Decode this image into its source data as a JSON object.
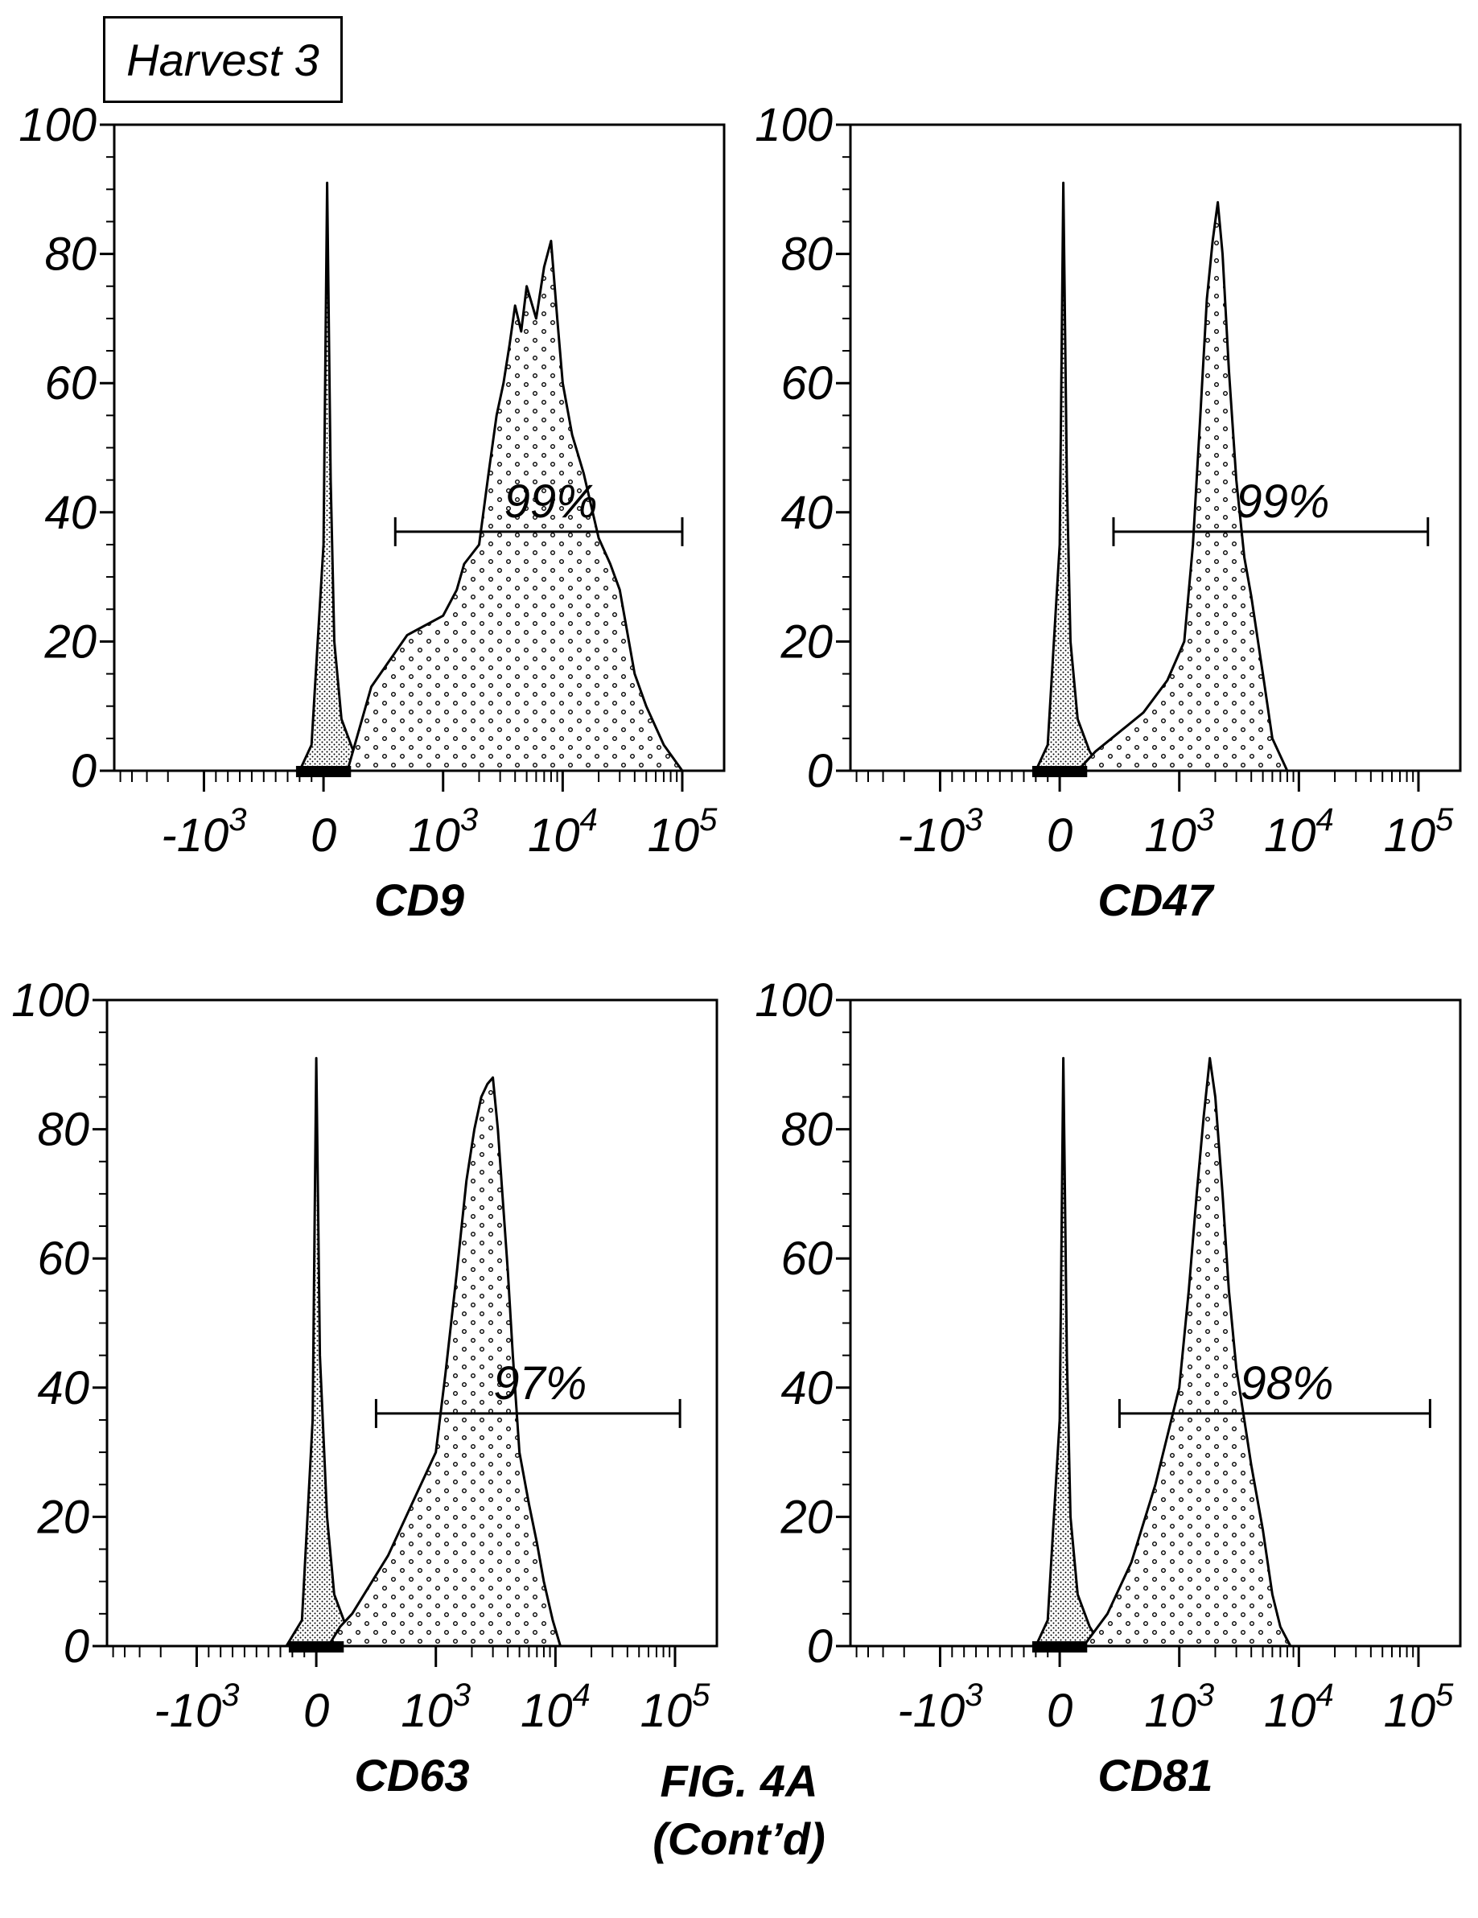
{
  "header": {
    "harvest_label": "Harvest 3"
  },
  "caption": {
    "line1": "FIG. 4A",
    "line2": "(Cont’d)"
  },
  "colors": {
    "ink": "#000000",
    "background": "#ffffff"
  },
  "chart_data": [
    {
      "type": "area",
      "xlabel": "CD9",
      "x_tick_labels": [
        "-10",
        "0",
        "10",
        "10",
        "10"
      ],
      "x_tick_exponents": [
        "3",
        "",
        "3",
        "4",
        "5"
      ],
      "x_tick_values": [
        -1000,
        0,
        1000,
        10000,
        100000
      ],
      "y_ticks": [
        "0",
        "20",
        "40",
        "60",
        "80",
        "100"
      ],
      "ylim": [
        0,
        100
      ],
      "gate_percent": "99%",
      "gate_range": [
        600,
        100000
      ],
      "gate_y": 37,
      "series": [
        {
          "role": "control",
          "x": [
            -200,
            -100,
            0,
            30,
            60,
            90,
            150,
            250,
            350
          ],
          "y": [
            0,
            4,
            35,
            91,
            45,
            20,
            8,
            3,
            0
          ]
        },
        {
          "role": "stained",
          "x": [
            200,
            400,
            700,
            1000,
            1300,
            1500,
            2000,
            2400,
            2800,
            3200,
            3600,
            4000,
            4500,
            5000,
            6000,
            7000,
            8000,
            9000,
            10000,
            12000,
            15000,
            20000,
            25000,
            30000,
            40000,
            50000,
            70000,
            100000
          ],
          "y": [
            0,
            13,
            21,
            24,
            28,
            32,
            35,
            46,
            55,
            60,
            66,
            72,
            68,
            75,
            70,
            78,
            82,
            70,
            60,
            52,
            46,
            36,
            32,
            28,
            15,
            10,
            4,
            0
          ]
        }
      ]
    },
    {
      "type": "area",
      "xlabel": "CD47",
      "x_tick_labels": [
        "-10",
        "0",
        "10",
        "10",
        "10"
      ],
      "x_tick_exponents": [
        "3",
        "",
        "3",
        "4",
        "5"
      ],
      "x_tick_values": [
        -1000,
        0,
        1000,
        10000,
        100000
      ],
      "y_ticks": [
        "0",
        "20",
        "40",
        "60",
        "80",
        "100"
      ],
      "ylim": [
        0,
        100
      ],
      "gate_percent": "99%",
      "gate_range": [
        450,
        120000
      ],
      "gate_y": 37,
      "series": [
        {
          "role": "control",
          "x": [
            -200,
            -100,
            0,
            30,
            60,
            90,
            150,
            250,
            350
          ],
          "y": [
            0,
            4,
            35,
            91,
            45,
            20,
            8,
            3,
            0
          ]
        },
        {
          "role": "stained",
          "x": [
            150,
            300,
            500,
            700,
            900,
            1100,
            1300,
            1500,
            1700,
            1900,
            2100,
            2300,
            2600,
            3000,
            3500,
            4000,
            5000,
            6000,
            8000
          ],
          "y": [
            0,
            3,
            6,
            9,
            14,
            20,
            35,
            55,
            73,
            82,
            88,
            80,
            62,
            45,
            33,
            27,
            15,
            5,
            0
          ]
        }
      ]
    },
    {
      "type": "area",
      "xlabel": "CD63",
      "x_tick_labels": [
        "-10",
        "0",
        "10",
        "10",
        "10"
      ],
      "x_tick_exponents": [
        "3",
        "",
        "3",
        "4",
        "5"
      ],
      "x_tick_values": [
        -1000,
        0,
        1000,
        10000,
        100000
      ],
      "y_ticks": [
        "0",
        "20",
        "40",
        "60",
        "80",
        "100"
      ],
      "ylim": [
        0,
        100
      ],
      "gate_percent": "97%",
      "gate_range": [
        500,
        110000
      ],
      "gate_y": 36,
      "series": [
        {
          "role": "control",
          "x": [
            -250,
            -120,
            -30,
            0,
            30,
            90,
            150,
            250,
            350
          ],
          "y": [
            0,
            4,
            35,
            91,
            45,
            20,
            8,
            3,
            0
          ]
        },
        {
          "role": "stained",
          "x": [
            100,
            200,
            300,
            400,
            600,
            800,
            1000,
            1200,
            1500,
            1800,
            2100,
            2400,
            2700,
            3000,
            3300,
            3600,
            4000,
            4400,
            5000,
            6000,
            7000,
            8000,
            9500,
            11000
          ],
          "y": [
            0,
            3,
            5,
            8,
            14,
            22,
            30,
            42,
            58,
            72,
            80,
            85,
            87,
            88,
            80,
            70,
            58,
            45,
            30,
            22,
            16,
            10,
            4,
            0
          ]
        }
      ]
    },
    {
      "type": "area",
      "xlabel": "CD81",
      "x_tick_labels": [
        "-10",
        "0",
        "10",
        "10",
        "10"
      ],
      "x_tick_exponents": [
        "3",
        "",
        "3",
        "4",
        "5"
      ],
      "x_tick_values": [
        -1000,
        0,
        1000,
        10000,
        100000
      ],
      "y_ticks": [
        "0",
        "20",
        "40",
        "60",
        "80",
        "100"
      ],
      "ylim": [
        0,
        100
      ],
      "gate_percent": "98%",
      "gate_range": [
        500,
        125000
      ],
      "gate_y": 36,
      "series": [
        {
          "role": "control",
          "x": [
            -200,
            -100,
            0,
            30,
            60,
            90,
            150,
            250,
            350
          ],
          "y": [
            0,
            4,
            35,
            91,
            45,
            20,
            8,
            3,
            0
          ]
        },
        {
          "role": "stained",
          "x": [
            200,
            400,
            600,
            800,
            1000,
            1200,
            1400,
            1600,
            1800,
            2000,
            2300,
            2600,
            3000,
            3500,
            4000,
            5000,
            6000,
            7000,
            8500
          ],
          "y": [
            0,
            5,
            13,
            25,
            40,
            55,
            70,
            82,
            91,
            85,
            70,
            55,
            43,
            35,
            28,
            18,
            8,
            3,
            0
          ]
        }
      ]
    }
  ]
}
